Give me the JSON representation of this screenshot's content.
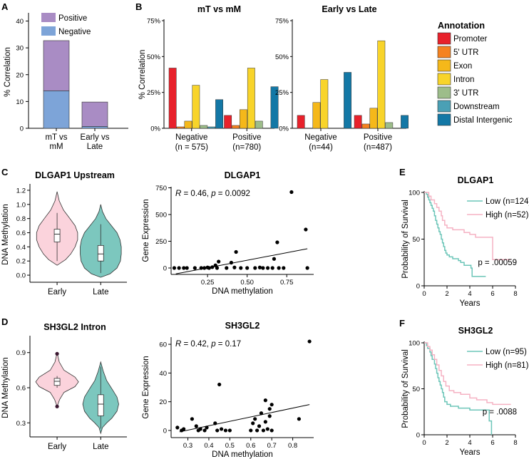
{
  "panels": {
    "A": "A",
    "B": "B",
    "C": "C",
    "D": "D",
    "E": "E",
    "F": "F"
  },
  "colors": {
    "positive": "#a98cc4",
    "negative": "#7da4d8",
    "violin_early": "#fbd3dc",
    "violin_late": "#7cc7be",
    "km_low": "#6cc5b8",
    "km_high": "#f5b2c3"
  },
  "chart_data": [
    {
      "id": "A",
      "type": "bar",
      "stacked": true,
      "categories": [
        "mT vs mM",
        "Early vs Late"
      ],
      "category_lines": [
        [
          "mT vs",
          "mM"
        ],
        [
          "Early vs",
          "Late"
        ]
      ],
      "series": [
        {
          "name": "Negative",
          "values": [
            14,
            0.7
          ]
        },
        {
          "name": "Positive",
          "values": [
            18.7,
            9.1
          ]
        }
      ],
      "ylabel": "% Correlation",
      "ylim": [
        0,
        42
      ],
      "yticks": [
        "0",
        "10",
        "20",
        "30",
        "40"
      ],
      "legend": [
        "Positive",
        "Negative"
      ]
    },
    {
      "id": "B",
      "type": "bar",
      "ylabel": "% Correlation",
      "ylim": [
        0,
        75
      ],
      "yticks": [
        "0%",
        "25%",
        "50%",
        "75%"
      ],
      "legend_title": "Annotation",
      "annotations": [
        "Promoter",
        "5' UTR",
        "Exon",
        "Intron",
        "3' UTR",
        "Downstream",
        "Distal Intergenic"
      ],
      "annotation_colors": [
        "#e8212b",
        "#f58220",
        "#f5b81a",
        "#f8d42a",
        "#9dbd8a",
        "#4aa0b5",
        "#1378a6"
      ],
      "subplots": [
        {
          "title": "mT vs mM",
          "groups": [
            {
              "label": "Negative",
              "sublabel": "(n = 575)",
              "values": [
                42,
                1,
                5,
                30,
                2,
                1,
                20
              ]
            },
            {
              "label": "Positive",
              "sublabel": "(n=780)",
              "values": [
                9,
                2,
                13,
                42,
                5,
                0,
                29
              ]
            }
          ]
        },
        {
          "title": "Early vs Late",
          "groups": [
            {
              "label": "Negative",
              "sublabel": "(n=44)",
              "values": [
                9,
                0,
                18,
                34,
                0,
                0,
                39
              ]
            },
            {
              "label": "Positive",
              "sublabel": "(n=487)",
              "values": [
                9,
                3,
                14,
                61,
                4,
                0,
                9
              ]
            }
          ]
        }
      ]
    },
    {
      "id": "C_violin",
      "type": "violin",
      "title": "DLGAP1 Upstream",
      "ylabel": "DNA Methylation",
      "ylim": [
        -0.1,
        1.25
      ],
      "yticks": [
        0,
        0.2,
        0.4,
        0.6,
        0.8,
        1.0,
        1.2
      ],
      "ytick_labels": [
        "0.0",
        "0.2",
        "0.4",
        "0.6",
        "0.8",
        "1.0",
        "1.2"
      ],
      "groups": [
        {
          "label": "Early",
          "profile": [
            [
              1.18,
              0.0
            ],
            [
              1.05,
              0.05
            ],
            [
              0.92,
              0.15
            ],
            [
              0.8,
              0.3
            ],
            [
              0.7,
              0.42
            ],
            [
              0.6,
              0.48
            ],
            [
              0.5,
              0.48
            ],
            [
              0.4,
              0.42
            ],
            [
              0.3,
              0.32
            ],
            [
              0.22,
              0.2
            ],
            [
              0.14,
              0.0
            ]
          ],
          "box": [
            0.47,
            0.65
          ],
          "median": 0.58,
          "whisker": [
            0.2,
            0.88
          ]
        },
        {
          "label": "Late",
          "profile": [
            [
              1.0,
              0.0
            ],
            [
              0.9,
              0.04
            ],
            [
              0.8,
              0.12
            ],
            [
              0.7,
              0.25
            ],
            [
              0.6,
              0.38
            ],
            [
              0.5,
              0.45
            ],
            [
              0.4,
              0.48
            ],
            [
              0.3,
              0.48
            ],
            [
              0.2,
              0.46
            ],
            [
              0.1,
              0.38
            ],
            [
              0.02,
              0.22
            ],
            [
              -0.03,
              0.0
            ]
          ],
          "box": [
            0.2,
            0.42
          ],
          "median": 0.3,
          "whisker": [
            0.03,
            0.72
          ]
        }
      ]
    },
    {
      "id": "C_scatter",
      "type": "scatter",
      "title": "DLGAP1",
      "annotation": {
        "r_sym": "R",
        "r_text": " = 0.46, ",
        "p_sym": "p",
        "p_text": " = 0.0092"
      },
      "xlabel": "DNA methylation",
      "ylabel": "Gene Expression",
      "xlim": [
        0.02,
        0.92
      ],
      "ylim": [
        -60,
        760
      ],
      "xticks": [
        0.25,
        0.5,
        0.75
      ],
      "xtick_labels": [
        "0.25",
        "0.50",
        "0.75"
      ],
      "yticks": [
        0,
        250,
        500,
        750
      ],
      "ytick_labels": [
        "0",
        "250",
        "500",
        "750"
      ],
      "fit": {
        "x": [
          0.05,
          0.88
        ],
        "y": [
          -55,
          180
        ]
      },
      "points": [
        [
          0.04,
          0
        ],
        [
          0.07,
          0
        ],
        [
          0.1,
          0
        ],
        [
          0.12,
          0
        ],
        [
          0.17,
          0
        ],
        [
          0.21,
          0
        ],
        [
          0.23,
          0
        ],
        [
          0.25,
          5
        ],
        [
          0.26,
          0
        ],
        [
          0.28,
          8
        ],
        [
          0.3,
          25
        ],
        [
          0.31,
          0
        ],
        [
          0.32,
          60
        ],
        [
          0.37,
          0
        ],
        [
          0.4,
          50
        ],
        [
          0.42,
          5
        ],
        [
          0.43,
          150
        ],
        [
          0.46,
          0
        ],
        [
          0.5,
          0
        ],
        [
          0.55,
          0
        ],
        [
          0.58,
          5
        ],
        [
          0.6,
          0
        ],
        [
          0.63,
          0
        ],
        [
          0.66,
          0
        ],
        [
          0.67,
          85
        ],
        [
          0.69,
          240
        ],
        [
          0.7,
          0
        ],
        [
          0.73,
          0
        ],
        [
          0.78,
          710
        ],
        [
          0.87,
          360
        ],
        [
          0.88,
          0
        ]
      ]
    },
    {
      "id": "E",
      "type": "line",
      "subtype": "kaplan-meier",
      "title": "DLGAP1",
      "xlabel": "Years",
      "ylabel": "Probability of Survival",
      "xlim": [
        0,
        8
      ],
      "ylim": [
        0,
        100
      ],
      "xticks": [
        0,
        2,
        4,
        6,
        8
      ],
      "yticks": [
        0,
        50,
        100
      ],
      "pvalue": "p = .00059",
      "series": [
        {
          "name": "Low (n=124)",
          "steps": [
            [
              0,
              100
            ],
            [
              0.2,
              98
            ],
            [
              0.3,
              95
            ],
            [
              0.4,
              92
            ],
            [
              0.5,
              89
            ],
            [
              0.6,
              86
            ],
            [
              0.7,
              83
            ],
            [
              0.8,
              80
            ],
            [
              0.9,
              75
            ],
            [
              1.0,
              70
            ],
            [
              1.1,
              66
            ],
            [
              1.2,
              62
            ],
            [
              1.3,
              58
            ],
            [
              1.4,
              55
            ],
            [
              1.5,
              50
            ],
            [
              1.6,
              46
            ],
            [
              1.7,
              42
            ],
            [
              1.8,
              38
            ],
            [
              1.9,
              35
            ],
            [
              2.0,
              33
            ],
            [
              2.2,
              31
            ],
            [
              2.5,
              29
            ],
            [
              3.0,
              27
            ],
            [
              3.2,
              25
            ],
            [
              3.5,
              22
            ],
            [
              4.1,
              19
            ],
            [
              4.2,
              10
            ],
            [
              5.4,
              10
            ]
          ]
        },
        {
          "name": "High (n=52)",
          "steps": [
            [
              0,
              100
            ],
            [
              0.4,
              96
            ],
            [
              0.6,
              92
            ],
            [
              0.9,
              88
            ],
            [
              1.1,
              84
            ],
            [
              1.3,
              80
            ],
            [
              1.5,
              75
            ],
            [
              1.6,
              70
            ],
            [
              1.8,
              65
            ],
            [
              2.0,
              62
            ],
            [
              2.5,
              60
            ],
            [
              3.5,
              57
            ],
            [
              4.0,
              55
            ],
            [
              4.5,
              52
            ],
            [
              5.9,
              52
            ],
            [
              6.0,
              28
            ],
            [
              7.6,
              28
            ]
          ]
        }
      ]
    },
    {
      "id": "D_violin",
      "type": "violin",
      "title": "SH3GL2 Intron",
      "ylabel": "DNA Methylation",
      "ylim": [
        0.18,
        1.02
      ],
      "yticks": [
        0.3,
        0.6,
        0.9
      ],
      "ytick_labels": [
        "0.3",
        "0.6",
        "0.9"
      ],
      "groups": [
        {
          "label": "Early",
          "profile": [
            [
              0.9,
              0.0
            ],
            [
              0.82,
              0.05
            ],
            [
              0.75,
              0.16
            ],
            [
              0.69,
              0.42
            ],
            [
              0.65,
              0.5
            ],
            [
              0.61,
              0.42
            ],
            [
              0.56,
              0.16
            ],
            [
              0.5,
              0.06
            ],
            [
              0.44,
              0.0
            ]
          ],
          "box": [
            0.62,
            0.68
          ],
          "median": 0.655,
          "whisker": [
            0.6,
            0.7
          ],
          "outliers": [
            0.89,
            0.44
          ]
        },
        {
          "label": "Late",
          "profile": [
            [
              0.82,
              0.0
            ],
            [
              0.74,
              0.06
            ],
            [
              0.66,
              0.14
            ],
            [
              0.58,
              0.28
            ],
            [
              0.52,
              0.38
            ],
            [
              0.46,
              0.42
            ],
            [
              0.4,
              0.38
            ],
            [
              0.34,
              0.26
            ],
            [
              0.3,
              0.14
            ],
            [
              0.26,
              0.04
            ],
            [
              0.21,
              0.0
            ]
          ],
          "box": [
            0.36,
            0.54
          ],
          "median": 0.46,
          "whisker": [
            0.25,
            0.78
          ]
        }
      ]
    },
    {
      "id": "D_scatter",
      "type": "scatter",
      "title": "SH3GL2",
      "annotation": {
        "r_sym": "R",
        "r_text": " = 0.42, ",
        "p_sym": "p",
        "p_text": " = 0.17"
      },
      "xlabel": "DNA methylation",
      "ylabel": "Gene Expression",
      "xlim": [
        0.22,
        0.9
      ],
      "ylim": [
        -5,
        65
      ],
      "xticks": [
        0.3,
        0.4,
        0.5,
        0.6,
        0.7,
        0.8
      ],
      "xtick_labels": [
        "0.3",
        "0.4",
        "0.5",
        "0.6",
        "0.7",
        "0.8"
      ],
      "yticks": [
        0,
        20,
        40,
        60
      ],
      "ytick_labels": [
        "0",
        "20",
        "40",
        "60"
      ],
      "fit": {
        "x": [
          0.26,
          0.88
        ],
        "y": [
          -1,
          18
        ]
      },
      "points": [
        [
          0.25,
          2
        ],
        [
          0.27,
          0
        ],
        [
          0.28,
          1
        ],
        [
          0.32,
          8
        ],
        [
          0.34,
          3
        ],
        [
          0.35,
          0
        ],
        [
          0.36,
          1
        ],
        [
          0.38,
          0
        ],
        [
          0.39,
          2
        ],
        [
          0.43,
          5
        ],
        [
          0.44,
          0
        ],
        [
          0.45,
          32
        ],
        [
          0.46,
          1
        ],
        [
          0.48,
          0
        ],
        [
          0.5,
          0
        ],
        [
          0.6,
          0
        ],
        [
          0.61,
          5
        ],
        [
          0.62,
          8
        ],
        [
          0.63,
          0
        ],
        [
          0.64,
          3
        ],
        [
          0.65,
          12
        ],
        [
          0.66,
          0
        ],
        [
          0.67,
          21
        ],
        [
          0.67,
          6
        ],
        [
          0.68,
          1
        ],
        [
          0.69,
          10
        ],
        [
          0.69,
          15
        ],
        [
          0.7,
          0
        ],
        [
          0.7,
          18
        ],
        [
          0.83,
          8
        ],
        [
          0.88,
          62
        ]
      ]
    },
    {
      "id": "F",
      "type": "line",
      "subtype": "kaplan-meier",
      "title": "SH3GL2",
      "xlabel": "Years",
      "ylabel": "Probability of Survival",
      "xlim": [
        0,
        8
      ],
      "ylim": [
        0,
        100
      ],
      "xticks": [
        0,
        2,
        4,
        6,
        8
      ],
      "yticks": [
        0,
        50,
        100
      ],
      "pvalue": "p = .0088",
      "series": [
        {
          "name": "Low (n=95)",
          "steps": [
            [
              0,
              100
            ],
            [
              0.2,
              97
            ],
            [
              0.3,
              94
            ],
            [
              0.5,
              90
            ],
            [
              0.6,
              86
            ],
            [
              0.7,
              82
            ],
            [
              0.9,
              77
            ],
            [
              1.0,
              72
            ],
            [
              1.1,
              67
            ],
            [
              1.2,
              62
            ],
            [
              1.3,
              58
            ],
            [
              1.4,
              54
            ],
            [
              1.5,
              50
            ],
            [
              1.6,
              46
            ],
            [
              1.7,
              41
            ],
            [
              1.8,
              36
            ],
            [
              2.0,
              33
            ],
            [
              2.3,
              31
            ],
            [
              3.0,
              29
            ],
            [
              4.0,
              27
            ],
            [
              5.6,
              27
            ],
            [
              5.7,
              15
            ],
            [
              5.9,
              0
            ]
          ]
        },
        {
          "name": "High (n=81)",
          "steps": [
            [
              0,
              100
            ],
            [
              0.3,
              96
            ],
            [
              0.5,
              92
            ],
            [
              0.7,
              87
            ],
            [
              0.9,
              82
            ],
            [
              1.1,
              76
            ],
            [
              1.3,
              70
            ],
            [
              1.5,
              64
            ],
            [
              1.7,
              58
            ],
            [
              1.9,
              53
            ],
            [
              2.2,
              48
            ],
            [
              2.6,
              46
            ],
            [
              3.2,
              44
            ],
            [
              4.0,
              40
            ],
            [
              4.6,
              38
            ],
            [
              5.5,
              35
            ],
            [
              6.0,
              33
            ],
            [
              7.6,
              33
            ]
          ]
        }
      ]
    }
  ]
}
